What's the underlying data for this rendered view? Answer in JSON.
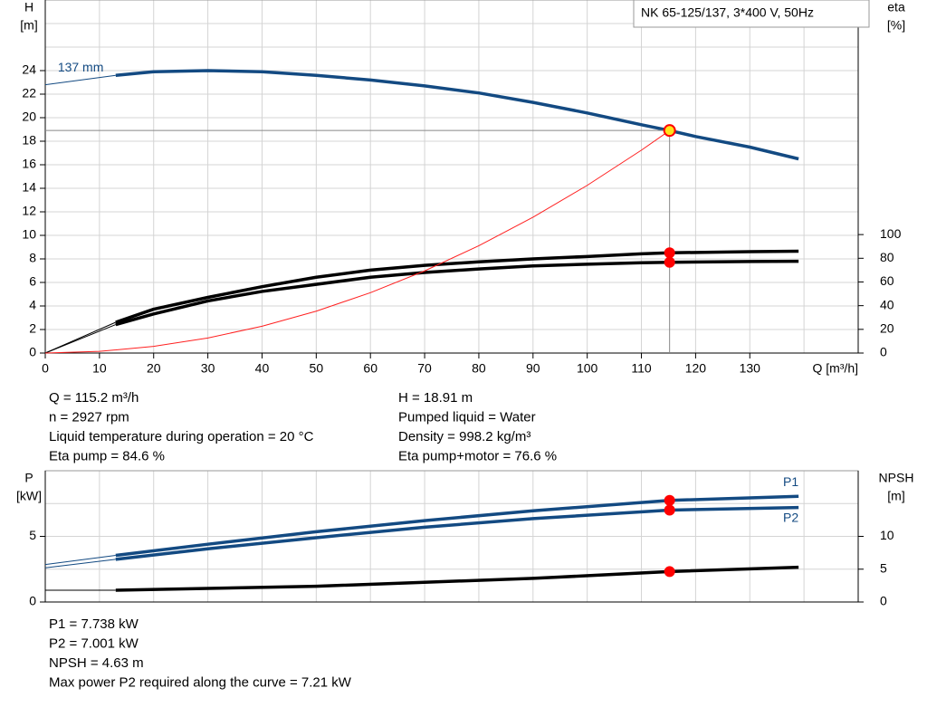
{
  "chart_data": [
    {
      "type": "line",
      "title": "NK 65-125/137, 3*400 V, 50Hz",
      "y_label": [
        "H",
        "[m]"
      ],
      "y2_label": [
        "eta",
        "[%]"
      ],
      "x_label": "Q [m³/h]",
      "xlim": [
        0,
        150
      ],
      "xticks": [
        0,
        10,
        20,
        30,
        40,
        50,
        60,
        70,
        80,
        90,
        100,
        110,
        120,
        130
      ],
      "xgrid": [
        0,
        10,
        20,
        30,
        40,
        50,
        60,
        70,
        80,
        90,
        100,
        110,
        120,
        130,
        140,
        150
      ],
      "ylim": [
        0,
        30
      ],
      "yticks": [
        0,
        2,
        4,
        6,
        8,
        10,
        12,
        14,
        16,
        18,
        20,
        22,
        24
      ],
      "ygrid": [
        0,
        2,
        4,
        6,
        8,
        10,
        12,
        14,
        16,
        18,
        20,
        22,
        24,
        26,
        28,
        30
      ],
      "y2lim": [
        0,
        298
      ],
      "y2ticks": [
        0,
        20,
        40,
        60,
        80,
        100
      ],
      "operating_x": 115.2,
      "series": [
        {
          "name": "137 mm",
          "color": "#134a82",
          "axis": "y",
          "point_color": "#ffe21a",
          "x": [
            0,
            13,
            20,
            30,
            40,
            50,
            60,
            70,
            80,
            90,
            100,
            110,
            115.2,
            120,
            130,
            139
          ],
          "values": [
            22.8,
            23.6,
            23.9,
            24.0,
            23.9,
            23.6,
            23.2,
            22.7,
            22.1,
            21.3,
            20.4,
            19.4,
            18.91,
            18.4,
            17.5,
            16.5
          ]
        },
        {
          "color": "#000000",
          "axis": "y2",
          "point_color": "#ff0000",
          "x": [
            0,
            13,
            20,
            30,
            40,
            50,
            60,
            70,
            80,
            90,
            100,
            110,
            115.2,
            130,
            139
          ],
          "values": [
            0,
            26,
            37,
            47,
            56,
            64,
            70,
            74,
            77,
            79.5,
            81.5,
            83.8,
            84.6,
            85.6,
            86
          ]
        },
        {
          "color": "#000000",
          "axis": "y2",
          "point_color": "#ff0000",
          "x": [
            0,
            13,
            20,
            30,
            40,
            50,
            60,
            70,
            80,
            90,
            100,
            110,
            115.2,
            130,
            139
          ],
          "values": [
            0,
            24,
            33,
            44,
            52,
            58,
            64,
            68,
            71,
            73.5,
            75,
            76.2,
            76.6,
            77.3,
            77.5
          ]
        },
        {
          "color": "#ff2020",
          "axis": "y",
          "line": "thin",
          "x": [
            0,
            10,
            20,
            30,
            40,
            50,
            60,
            70,
            80,
            90,
            100,
            110,
            115.2
          ],
          "values": [
            0,
            0.14,
            0.57,
            1.28,
            2.28,
            3.56,
            5.13,
            6.98,
            9.12,
            11.54,
            14.25,
            17.24,
            18.91
          ]
        }
      ],
      "info": [
        [
          "Q = 115.2 m³/h",
          "n = 2927 rpm",
          "Liquid temperature during operation = 20 °C",
          "Eta pump = 84.6 %"
        ],
        [
          "H = 18.91 m",
          "Pumped liquid = Water",
          "Density = 998.2 kg/m³",
          "Eta pump+motor = 76.6 %"
        ]
      ]
    },
    {
      "type": "line",
      "y_label": [
        "P",
        "[kW]"
      ],
      "y2_label": [
        "NPSH",
        "[m]"
      ],
      "xlim": [
        0,
        150
      ],
      "xgrid": [
        0,
        10,
        20,
        30,
        40,
        50,
        60,
        70,
        80,
        90,
        100,
        110,
        120,
        130,
        140,
        150
      ],
      "ylim": [
        0,
        10
      ],
      "yticks": [
        0,
        5
      ],
      "ygrid": [
        0,
        2.5,
        5,
        7.5,
        10
      ],
      "y2lim": [
        0,
        20
      ],
      "y2ticks": [
        0,
        5,
        10
      ],
      "operating_x": 115.2,
      "series": [
        {
          "name": "P1",
          "color": "#134a82",
          "axis": "y",
          "point_color": "#ff0000",
          "x": [
            0,
            13,
            30,
            50,
            70,
            90,
            115.2,
            139
          ],
          "values": [
            2.85,
            3.55,
            4.4,
            5.35,
            6.2,
            6.95,
            7.738,
            8.05
          ]
        },
        {
          "name": "P2",
          "color": "#134a82",
          "axis": "y",
          "point_color": "#ff0000",
          "x": [
            0,
            13,
            30,
            50,
            70,
            90,
            115.2,
            139
          ],
          "values": [
            2.6,
            3.25,
            4.05,
            4.9,
            5.7,
            6.35,
            7.001,
            7.2
          ]
        },
        {
          "color": "#000000",
          "axis": "y2",
          "point_color": "#ff0000",
          "x": [
            0,
            13,
            50,
            90,
            115.2,
            139
          ],
          "values": [
            1.8,
            1.8,
            2.4,
            3.6,
            4.63,
            5.3
          ]
        }
      ],
      "info": [
        [
          "P1 = 7.738 kW",
          "P2 = 7.001 kW",
          "NPSH = 4.63 m",
          "Max power P2 required along the curve = 7.21 kW"
        ]
      ]
    }
  ]
}
